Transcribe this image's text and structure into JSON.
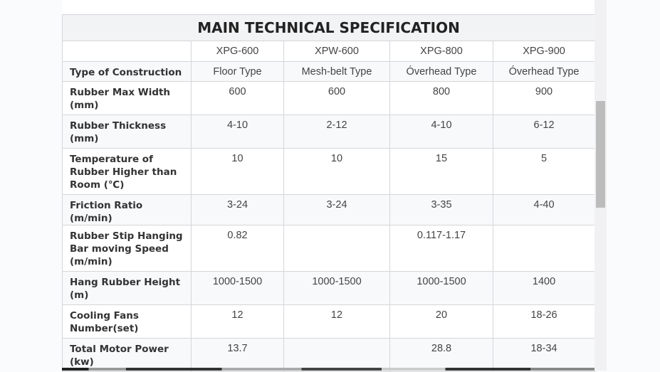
{
  "table": {
    "title": "MAIN TECHNICAL SPECIFICATION",
    "models": [
      "XPG-600",
      "XPW-600",
      "XPG-800",
      "XPG-900"
    ],
    "rows": [
      {
        "label": "Type of Construction",
        "values": [
          "Floor Type",
          "Mesh-belt Type",
          "Óverhead Type",
          "Óverhead Type"
        ]
      },
      {
        "label": "Rubber Max Width (mm)",
        "values": [
          "600",
          "600",
          "800",
          "900"
        ]
      },
      {
        "label": "Rubber Thickness (mm)",
        "values": [
          "4-10",
          "2-12",
          "4-10",
          "6-12"
        ]
      },
      {
        "label": "Temperature of Rubber Higher than Room (℃)",
        "values": [
          "10",
          "10",
          "15",
          "5"
        ]
      },
      {
        "label": "Friction Ratio (m/min)",
        "values": [
          "3-24",
          "3-24",
          "3-35",
          "4-40"
        ]
      },
      {
        "label": "Rubber Stip Hanging Bar moving Speed (m/min)",
        "values": [
          "0.82",
          "",
          "0.117-1.17",
          ""
        ]
      },
      {
        "label": "Hang Rubber Height (m)",
        "values": [
          "1000-1500",
          "1000-1500",
          "1000-1500",
          "1400"
        ]
      },
      {
        "label": "Cooling Fans Number(set)",
        "values": [
          "12",
          "12",
          "20",
          "18-26"
        ]
      },
      {
        "label": "Total Motor Power (kw)",
        "values": [
          "13.7",
          "",
          "28.8",
          "18-34"
        ]
      }
    ]
  }
}
